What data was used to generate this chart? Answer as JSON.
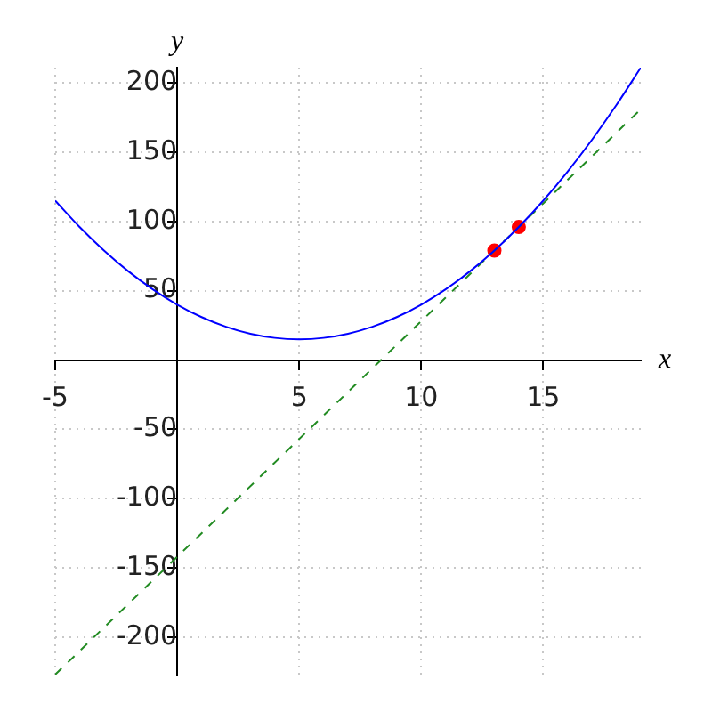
{
  "chart_data": {
    "type": "line",
    "xlabel": "x",
    "ylabel": "y",
    "xlim": [
      -5,
      19
    ],
    "ylim": [
      -227,
      211
    ],
    "xticks": [
      -5,
      5,
      10,
      15
    ],
    "yticks": [
      -200,
      -150,
      -100,
      -50,
      50,
      100,
      150,
      200
    ],
    "grid": true,
    "legend": false,
    "series": [
      {
        "color": "#0000ff",
        "line_style": "solid",
        "marker": "none",
        "x": [
          -5,
          -4,
          -3,
          -2,
          -1,
          0,
          1,
          2,
          3,
          4,
          5,
          6,
          7,
          8,
          9,
          10,
          11,
          12,
          13,
          14,
          15,
          16,
          17,
          18,
          19
        ],
        "values": [
          115,
          96,
          79,
          64,
          51,
          40,
          31,
          24,
          19,
          16,
          15,
          16,
          19,
          24,
          31,
          40,
          51,
          64,
          79,
          96,
          115,
          136,
          159,
          184,
          211
        ]
      },
      {
        "color": "#228b22",
        "line_style": "dashed",
        "marker": "none",
        "x": [
          -5,
          19
        ],
        "values": [
          -227,
          181
        ]
      },
      {
        "type": "scatter",
        "color": "#ff0000",
        "marker": "circle",
        "x": [
          13,
          14
        ],
        "values": [
          79,
          96
        ]
      }
    ]
  }
}
